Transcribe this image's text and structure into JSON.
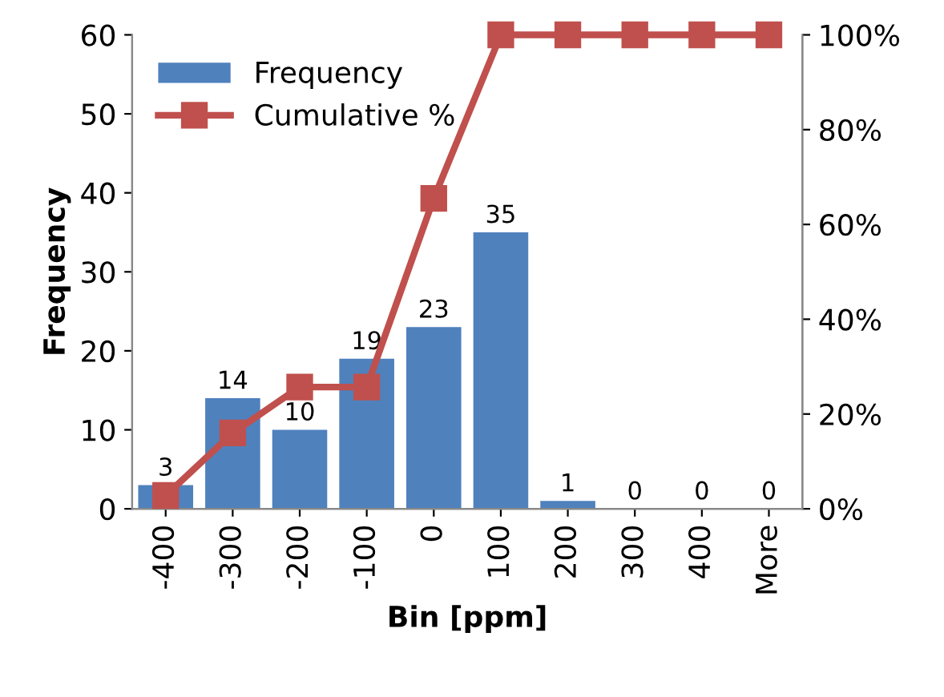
{
  "chart_data": {
    "type": "bar",
    "xlabel": "Bin [ppm]",
    "ylabel": "Frequency",
    "categories": [
      "-400",
      "-300",
      "-200",
      "-100",
      "0",
      "100",
      "200",
      "300",
      "400",
      "More"
    ],
    "series": [
      {
        "name": "Frequency",
        "color": "#4f81bd",
        "values": [
          3,
          14,
          10,
          19,
          23,
          35,
          1,
          0,
          0,
          0
        ],
        "value_labels": [
          "3",
          "14",
          "10",
          "19",
          "23",
          "35",
          "1",
          "0",
          "0",
          "0"
        ]
      },
      {
        "name": "Cumulative %",
        "type": "line",
        "axis": "y2",
        "color": "#c0504d",
        "marker": "square",
        "values": [
          2.8,
          16,
          25.7,
          25.7,
          65.5,
          100,
          100,
          100,
          100,
          100
        ]
      }
    ],
    "ylim": [
      0,
      60
    ],
    "yticks": [
      0,
      10,
      20,
      30,
      40,
      50,
      60
    ],
    "y2lim": [
      0,
      100
    ],
    "y2ticks": [
      {
        "value": 0,
        "label": "0%"
      },
      {
        "value": 20,
        "label": "20%"
      },
      {
        "value": 40,
        "label": "40%"
      },
      {
        "value": 60,
        "label": "60%"
      },
      {
        "value": 80,
        "label": "80%"
      },
      {
        "value": 100,
        "label": "100%"
      }
    ],
    "legend": "top left",
    "grid": false
  }
}
